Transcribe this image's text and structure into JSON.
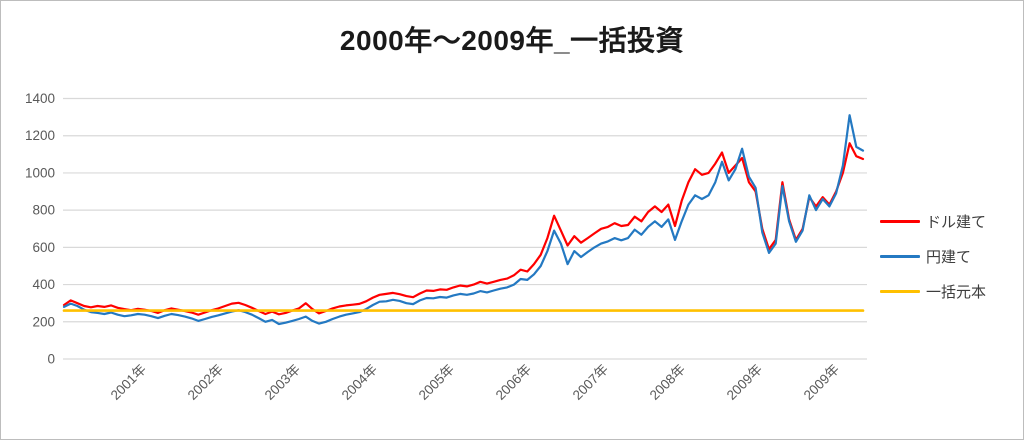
{
  "chart_data": {
    "type": "line",
    "title": "2000年～2009年_一括投資",
    "x_axis": {
      "tick_labels": [
        "2001年",
        "2002年",
        "2003年",
        "2004年",
        "2005年",
        "2006年",
        "2007年",
        "2008年",
        "2009年",
        "2009年"
      ],
      "domain_start": "2000",
      "domain_end": "2009",
      "sampling": "monthly"
    },
    "y_axis": {
      "min": 0,
      "max": 1400,
      "ticks": [
        1400,
        1200,
        1000,
        800,
        600,
        400,
        200,
        0
      ]
    },
    "grid": "horizontal",
    "legend_position": "right",
    "series": [
      {
        "name": "ドル建て",
        "color": "#ff0000",
        "values": [
          290,
          315,
          300,
          285,
          278,
          285,
          280,
          288,
          275,
          268,
          262,
          270,
          265,
          258,
          248,
          262,
          272,
          265,
          258,
          250,
          238,
          250,
          262,
          272,
          285,
          298,
          302,
          290,
          275,
          258,
          242,
          255,
          240,
          248,
          260,
          272,
          300,
          268,
          245,
          258,
          272,
          282,
          288,
          292,
          296,
          310,
          330,
          345,
          350,
          355,
          348,
          338,
          332,
          352,
          368,
          366,
          374,
          372,
          385,
          395,
          390,
          400,
          415,
          405,
          415,
          425,
          432,
          450,
          480,
          470,
          510,
          560,
          650,
          770,
          690,
          610,
          660,
          625,
          650,
          675,
          700,
          710,
          730,
          715,
          720,
          765,
          740,
          790,
          820,
          790,
          830,
          715,
          850,
          950,
          1020,
          990,
          1000,
          1050,
          1110,
          1000,
          1040,
          1080,
          950,
          900,
          700,
          590,
          640,
          950,
          750,
          640,
          700,
          870,
          820,
          870,
          830,
          900,
          1000,
          1160,
          1090,
          1075
        ]
      },
      {
        "name": "円建て",
        "color": "#2479c2",
        "values": [
          280,
          298,
          285,
          265,
          252,
          248,
          242,
          250,
          238,
          230,
          235,
          242,
          238,
          230,
          220,
          232,
          242,
          236,
          228,
          218,
          205,
          215,
          226,
          235,
          245,
          255,
          262,
          252,
          238,
          220,
          200,
          210,
          188,
          195,
          205,
          215,
          228,
          205,
          190,
          200,
          215,
          228,
          238,
          245,
          252,
          268,
          290,
          308,
          310,
          318,
          312,
          300,
          295,
          315,
          328,
          326,
          333,
          330,
          342,
          350,
          345,
          352,
          365,
          358,
          368,
          378,
          385,
          400,
          430,
          425,
          455,
          500,
          580,
          690,
          620,
          510,
          580,
          548,
          575,
          600,
          620,
          632,
          650,
          638,
          650,
          695,
          668,
          710,
          740,
          710,
          750,
          640,
          740,
          830,
          880,
          860,
          880,
          950,
          1060,
          960,
          1020,
          1130,
          980,
          920,
          680,
          570,
          620,
          930,
          740,
          630,
          690,
          880,
          800,
          860,
          820,
          890,
          1040,
          1310,
          1140,
          1120
        ]
      },
      {
        "name": "一括元本",
        "color": "#ffc000",
        "constant_value": 260
      }
    ]
  },
  "colors": {
    "gridline": "#d9d9d9",
    "axis_label": "#595959",
    "title": "#1a1a1a",
    "background": "#ffffff",
    "border": "#bdbdbd"
  }
}
